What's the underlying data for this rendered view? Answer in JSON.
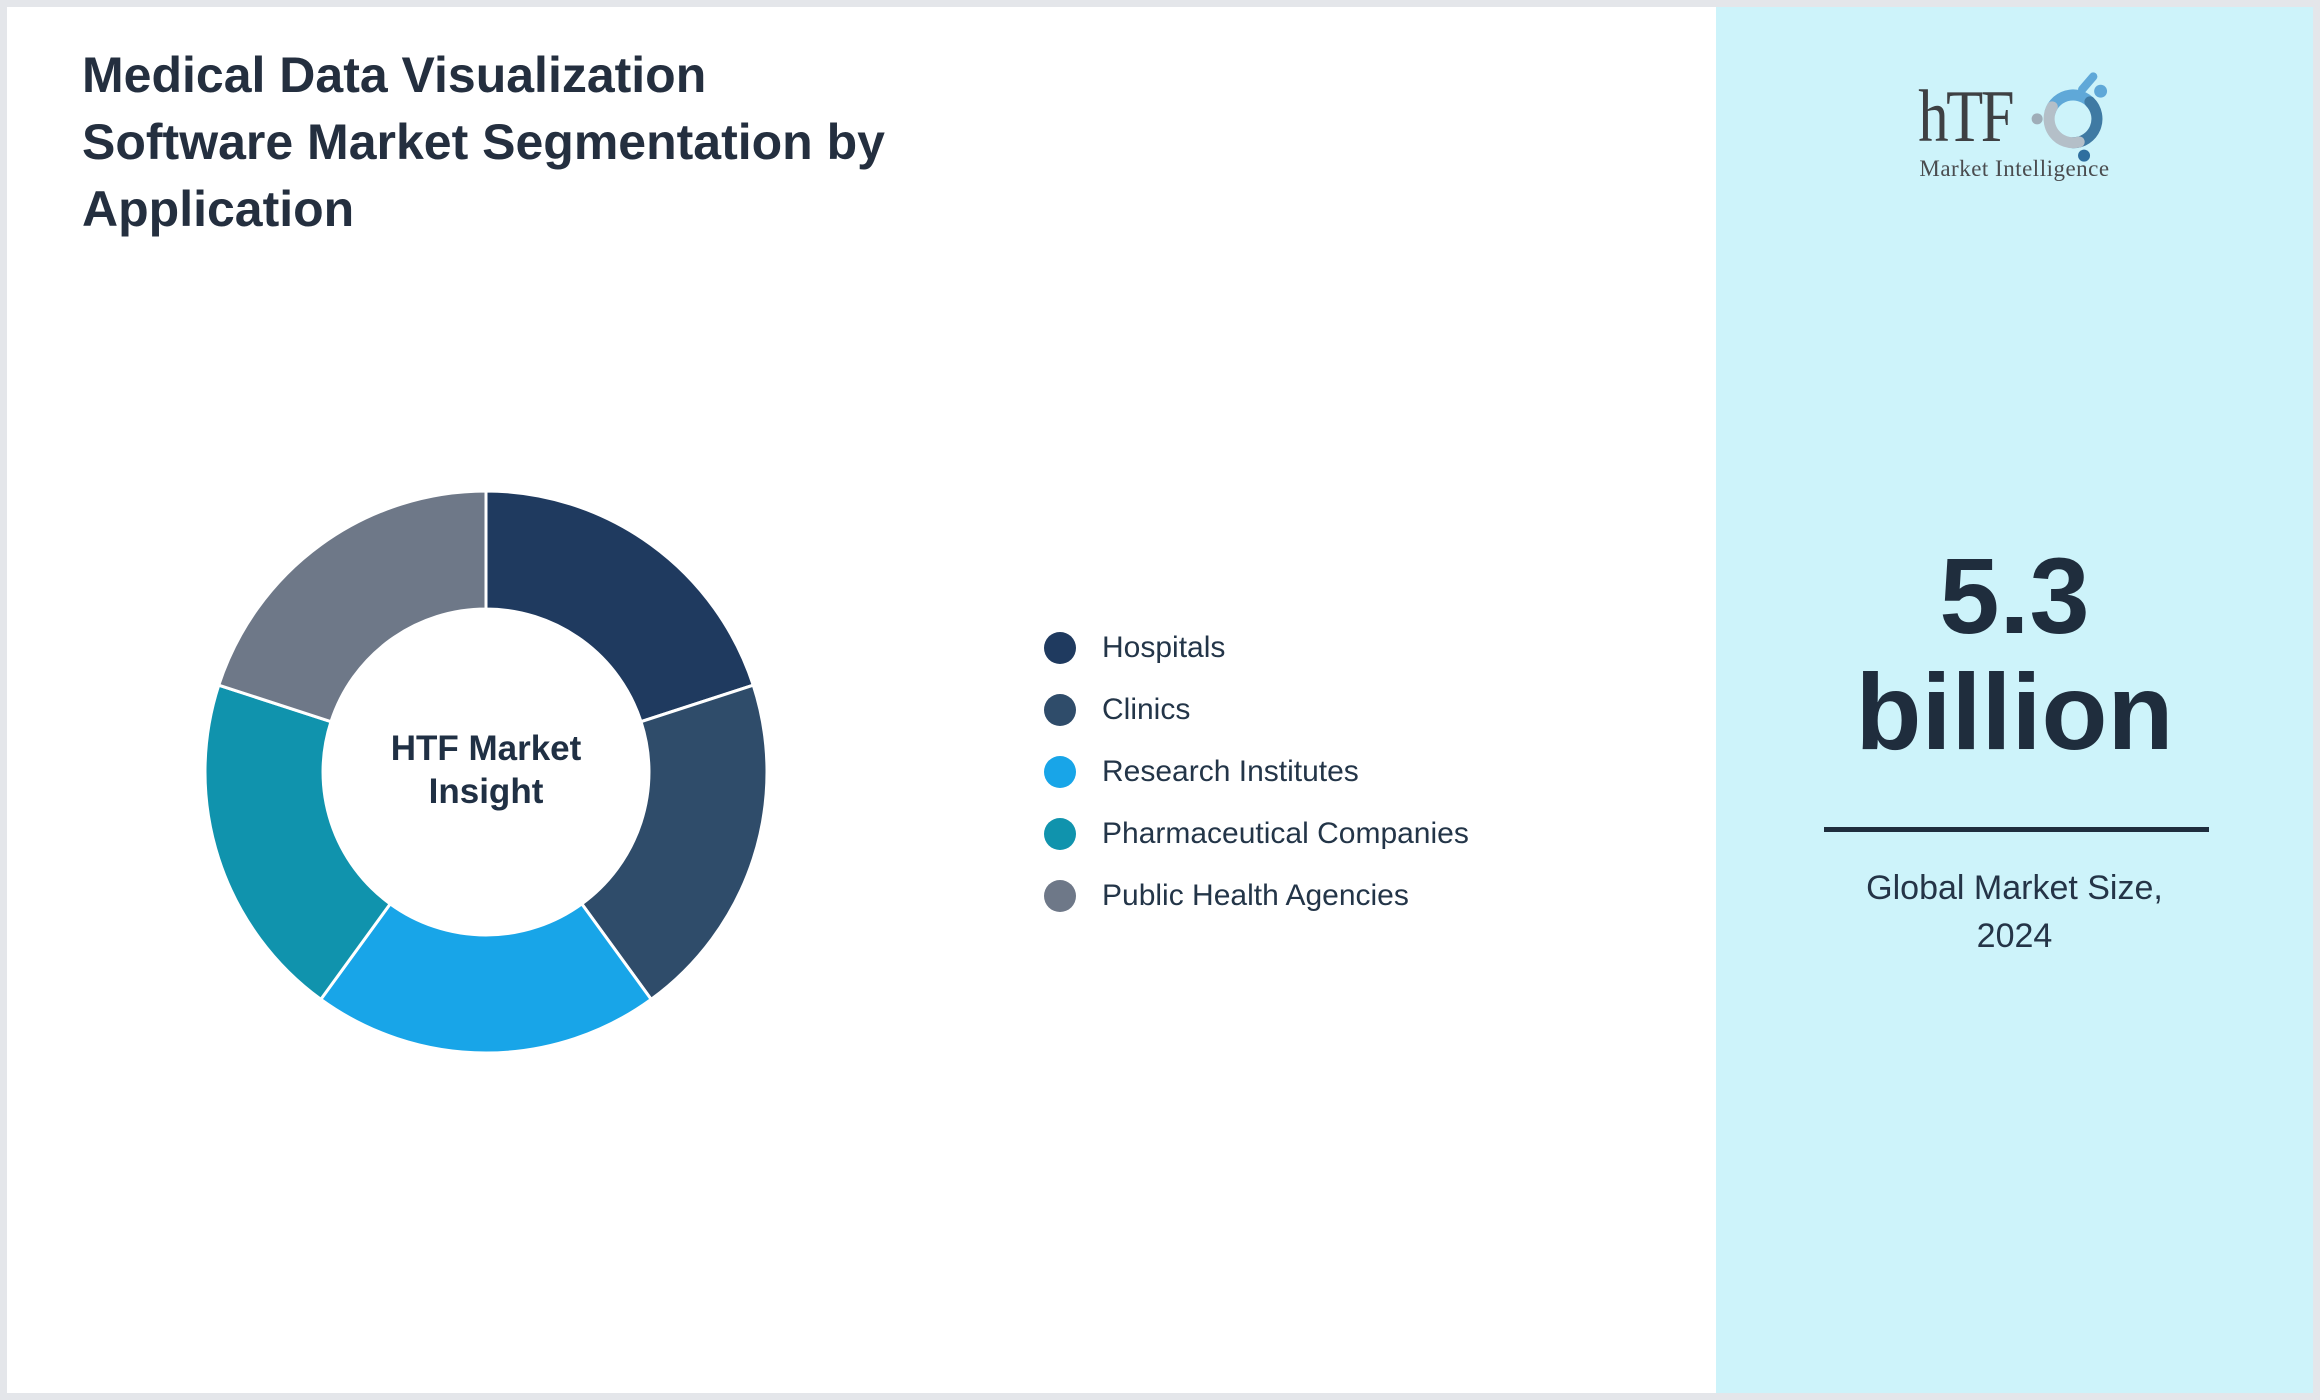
{
  "page": {
    "title_lines": [
      "Medical Data Visualization",
      "Software Market Segmentation by",
      "Application"
    ],
    "title_color": "#242f3f",
    "background": "#ffffff",
    "frame_color": "#e4e6ea"
  },
  "chart_data": {
    "type": "pie",
    "subtype": "donut",
    "title": "Medical Data Visualization Software Market Segmentation by Application",
    "center_label_lines": [
      "HTF Market",
      "Insight"
    ],
    "categories": [
      "Hospitals",
      "Clinics",
      "Research Institutes",
      "Pharmaceutical Companies",
      "Public Health Agencies"
    ],
    "values": [
      20,
      20,
      20,
      20,
      20
    ],
    "colors": [
      "#1F3A5F",
      "#2F4C6A",
      "#18A5E8",
      "#1093AD",
      "#6E7888"
    ],
    "start_angle_deg": 0,
    "direction": "clockwise",
    "inner_radius_ratio": 0.58,
    "slice_gap_color": "#ffffff",
    "legend_position": "right",
    "legend_text_color": "#233548"
  },
  "sidebar": {
    "background": "#cdf3fa",
    "logo": {
      "text": "hTF",
      "subtext": "Market Intelligence"
    },
    "stat_lines": [
      "5.3",
      "billion"
    ],
    "caption_lines": [
      "Global Market Size,",
      "2024"
    ],
    "stat_color": "#1f2d3d"
  }
}
